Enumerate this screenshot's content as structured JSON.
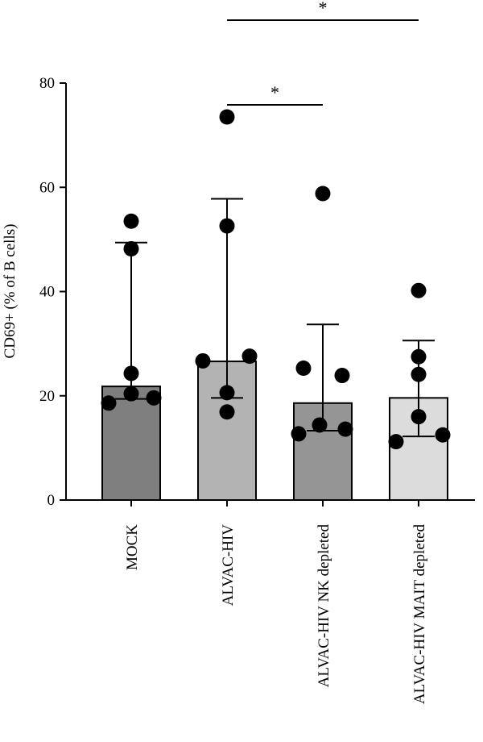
{
  "chart_data": {
    "type": "bar",
    "title": "",
    "xlabel": "",
    "ylabel": "CD69+ (% of B cells)",
    "ylim": [
      0,
      80
    ],
    "yticks": [
      0,
      20,
      40,
      60,
      80
    ],
    "grid": false,
    "categories": [
      "MOCK",
      "ALVAC-HIV",
      "ALVAC-HIV NK depleted",
      "ALVAC-HIV MAIT depleted"
    ],
    "bar_colors": [
      "#7f7f7f",
      "#b3b3b4",
      "#959595",
      "#dcdcdc"
    ],
    "values": [
      21.8,
      26.6,
      18.6,
      19.6
    ],
    "error_upper": [
      49.4,
      57.8,
      33.7,
      30.6
    ],
    "error_lower": [
      19.4,
      19.6,
      13.3,
      12.2
    ],
    "points": [
      [
        53.5,
        48.2,
        24.3,
        20.4,
        18.6,
        19.6
      ],
      [
        73.5,
        52.6,
        26.7,
        27.6,
        20.6,
        16.9
      ],
      [
        58.8,
        25.3,
        23.9,
        14.4,
        13.6,
        12.7
      ],
      [
        40.2,
        27.5,
        24.1,
        16.0,
        12.5,
        11.2
      ]
    ],
    "significance": [
      {
        "from": "ALVAC-HIV",
        "to": "ALVAC-HIV NK depleted",
        "label": "*"
      },
      {
        "from": "ALVAC-HIV",
        "to": "ALVAC-HIV MAIT depleted",
        "label": "*"
      }
    ]
  }
}
